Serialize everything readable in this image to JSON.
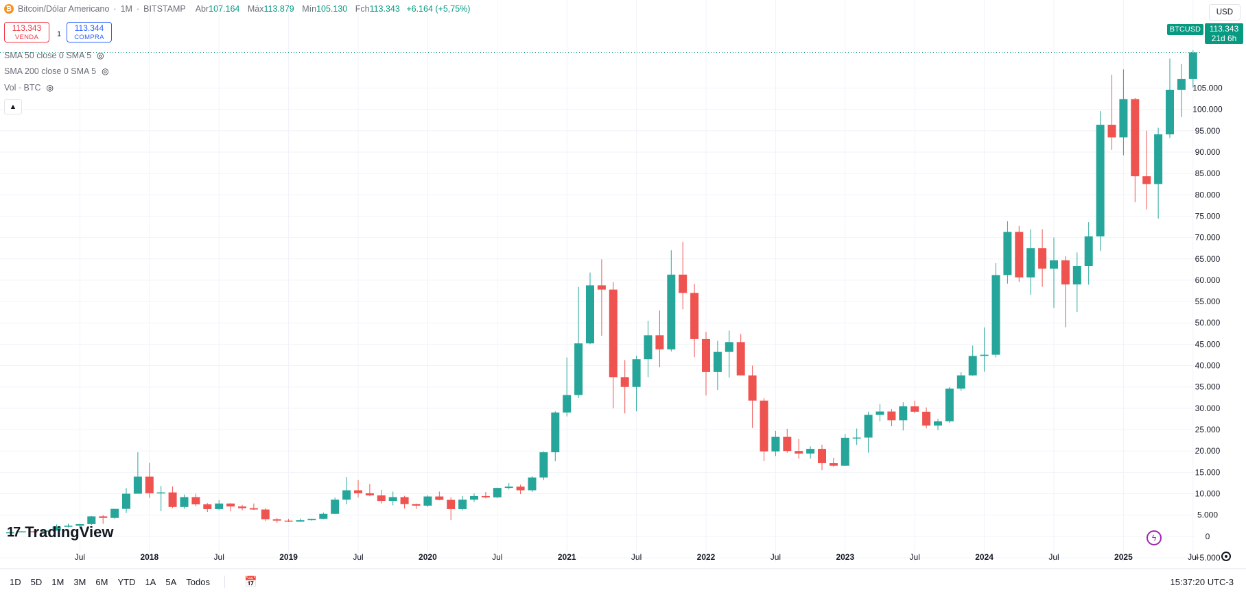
{
  "header": {
    "symbol_icon": "bitcoin-icon",
    "symbol_name": "Bitcoin/Dólar Americano",
    "interval": "1M",
    "exchange": "BITSTAMP",
    "open_label": "Abr",
    "open": "107.164",
    "high_label": "Máx",
    "high": "113.879",
    "low_label": "Mín",
    "low": "105.130",
    "close_label": "Fch",
    "close": "113.343",
    "change": "+6.164 (+5,75%)"
  },
  "trade": {
    "sell_price": "113.343",
    "sell_label": "VENDA",
    "spread": "1",
    "buy_price": "113.344",
    "buy_label": "COMPRA"
  },
  "indicators": [
    {
      "label": "SMA 50 close 0 SMA 5"
    },
    {
      "label": "SMA 200 close 0 SMA 5"
    },
    {
      "label": "Vol · BTC"
    }
  ],
  "collapse_icon": "chevron-up-icon",
  "currency_button": "USD",
  "last_price": {
    "symbol": "BTCUSD",
    "price": "113.343",
    "countdown": "21d 6h"
  },
  "logo_text": "TradingView",
  "timeframes": [
    "1D",
    "5D",
    "1M",
    "3M",
    "6M",
    "YTD",
    "1A",
    "5A",
    "Todos"
  ],
  "clock": "15:37:20 UTC-3",
  "colors": {
    "up": "#26a69a",
    "down": "#ef5350",
    "grid": "#f0f3fa",
    "axis_text": "#131722"
  },
  "chart_data": {
    "type": "candlestick",
    "title": "",
    "ylim": [
      -5000,
      120000
    ],
    "y_ticks": [
      -5000,
      0,
      5000,
      10000,
      15000,
      20000,
      25000,
      30000,
      35000,
      40000,
      45000,
      50000,
      55000,
      60000,
      65000,
      70000,
      75000,
      80000,
      85000,
      90000,
      95000,
      100000,
      105000
    ],
    "y_tick_labels": [
      "−5.000",
      "0",
      "5.000",
      "10.000",
      "15.000",
      "20.000",
      "25.000",
      "30.000",
      "35.000",
      "40.000",
      "45.000",
      "50.000",
      "55.000",
      "60.000",
      "65.000",
      "70.000",
      "75.000",
      "80.000",
      "85.000",
      "90.000",
      "95.000",
      "100.000",
      "105.000"
    ],
    "x_ticks": [
      {
        "date": "2017-07",
        "label": "Jul"
      },
      {
        "date": "2018-01",
        "label": "2018"
      },
      {
        "date": "2018-07",
        "label": "Jul"
      },
      {
        "date": "2019-01",
        "label": "2019"
      },
      {
        "date": "2019-07",
        "label": "Jul"
      },
      {
        "date": "2020-01",
        "label": "2020"
      },
      {
        "date": "2020-07",
        "label": "Jul"
      },
      {
        "date": "2021-01",
        "label": "2021"
      },
      {
        "date": "2021-07",
        "label": "Jul"
      },
      {
        "date": "2022-01",
        "label": "2022"
      },
      {
        "date": "2022-07",
        "label": "Jul"
      },
      {
        "date": "2023-01",
        "label": "2023"
      },
      {
        "date": "2023-07",
        "label": "Jul"
      },
      {
        "date": "2024-01",
        "label": "2024"
      },
      {
        "date": "2024-07",
        "label": "Jul"
      },
      {
        "date": "2025-01",
        "label": "2025"
      },
      {
        "date": "2025-07",
        "label": "Jul"
      }
    ],
    "candles": [
      {
        "d": "2017-01",
        "o": 960,
        "h": 1150,
        "l": 750,
        "c": 970
      },
      {
        "d": "2017-02",
        "o": 970,
        "h": 1200,
        "l": 910,
        "c": 1190
      },
      {
        "d": "2017-03",
        "o": 1190,
        "h": 1350,
        "l": 890,
        "c": 1080
      },
      {
        "d": "2017-04",
        "o": 1080,
        "h": 1450,
        "l": 1060,
        "c": 1350
      },
      {
        "d": "2017-05",
        "o": 1350,
        "h": 2800,
        "l": 1350,
        "c": 2300
      },
      {
        "d": "2017-06",
        "o": 2300,
        "h": 3000,
        "l": 2100,
        "c": 2500
      },
      {
        "d": "2017-07",
        "o": 2500,
        "h": 2950,
        "l": 1850,
        "c": 2870
      },
      {
        "d": "2017-08",
        "o": 2870,
        "h": 4800,
        "l": 2700,
        "c": 4700
      },
      {
        "d": "2017-09",
        "o": 4700,
        "h": 5000,
        "l": 2950,
        "c": 4340
      },
      {
        "d": "2017-10",
        "o": 4340,
        "h": 6450,
        "l": 4100,
        "c": 6450
      },
      {
        "d": "2017-11",
        "o": 6450,
        "h": 11300,
        "l": 5500,
        "c": 10000
      },
      {
        "d": "2017-12",
        "o": 10000,
        "h": 19700,
        "l": 10000,
        "c": 14000
      },
      {
        "d": "2018-01",
        "o": 14000,
        "h": 17200,
        "l": 9000,
        "c": 10100
      },
      {
        "d": "2018-02",
        "o": 10100,
        "h": 11800,
        "l": 5900,
        "c": 10300
      },
      {
        "d": "2018-03",
        "o": 10300,
        "h": 11700,
        "l": 6600,
        "c": 6900
      },
      {
        "d": "2018-04",
        "o": 6900,
        "h": 9800,
        "l": 6500,
        "c": 9200
      },
      {
        "d": "2018-05",
        "o": 9200,
        "h": 10000,
        "l": 7000,
        "c": 7500
      },
      {
        "d": "2018-06",
        "o": 7500,
        "h": 7800,
        "l": 5750,
        "c": 6400
      },
      {
        "d": "2018-07",
        "o": 6400,
        "h": 8500,
        "l": 6100,
        "c": 7700
      },
      {
        "d": "2018-08",
        "o": 7700,
        "h": 7800,
        "l": 5900,
        "c": 7000
      },
      {
        "d": "2018-09",
        "o": 7000,
        "h": 7400,
        "l": 6100,
        "c": 6600
      },
      {
        "d": "2018-10",
        "o": 6600,
        "h": 7700,
        "l": 6200,
        "c": 6300
      },
      {
        "d": "2018-11",
        "o": 6300,
        "h": 6600,
        "l": 3600,
        "c": 4000
      },
      {
        "d": "2018-12",
        "o": 4000,
        "h": 4300,
        "l": 3200,
        "c": 3700
      },
      {
        "d": "2019-01",
        "o": 3700,
        "h": 4100,
        "l": 3350,
        "c": 3450
      },
      {
        "d": "2019-02",
        "o": 3450,
        "h": 4200,
        "l": 3400,
        "c": 3800
      },
      {
        "d": "2019-03",
        "o": 3800,
        "h": 4150,
        "l": 3700,
        "c": 4100
      },
      {
        "d": "2019-04",
        "o": 4100,
        "h": 5600,
        "l": 4000,
        "c": 5300
      },
      {
        "d": "2019-05",
        "o": 5300,
        "h": 9100,
        "l": 5300,
        "c": 8600
      },
      {
        "d": "2019-06",
        "o": 8600,
        "h": 13900,
        "l": 7500,
        "c": 10800
      },
      {
        "d": "2019-07",
        "o": 10800,
        "h": 13200,
        "l": 9100,
        "c": 10100
      },
      {
        "d": "2019-08",
        "o": 10100,
        "h": 12300,
        "l": 9400,
        "c": 9600
      },
      {
        "d": "2019-09",
        "o": 9600,
        "h": 10900,
        "l": 7700,
        "c": 8300
      },
      {
        "d": "2019-10",
        "o": 8300,
        "h": 10500,
        "l": 7300,
        "c": 9200
      },
      {
        "d": "2019-11",
        "o": 9200,
        "h": 9500,
        "l": 6500,
        "c": 7550
      },
      {
        "d": "2019-12",
        "o": 7550,
        "h": 7700,
        "l": 6430,
        "c": 7200
      },
      {
        "d": "2020-01",
        "o": 7200,
        "h": 9600,
        "l": 6900,
        "c": 9350
      },
      {
        "d": "2020-02",
        "o": 9350,
        "h": 10500,
        "l": 8450,
        "c": 8550
      },
      {
        "d": "2020-03",
        "o": 8550,
        "h": 9200,
        "l": 3850,
        "c": 6400
      },
      {
        "d": "2020-04",
        "o": 6400,
        "h": 9450,
        "l": 6150,
        "c": 8600
      },
      {
        "d": "2020-05",
        "o": 8600,
        "h": 10050,
        "l": 8100,
        "c": 9450
      },
      {
        "d": "2020-06",
        "o": 9450,
        "h": 10400,
        "l": 8900,
        "c": 9140
      },
      {
        "d": "2020-07",
        "o": 9140,
        "h": 11450,
        "l": 8950,
        "c": 11350
      },
      {
        "d": "2020-08",
        "o": 11350,
        "h": 12480,
        "l": 11000,
        "c": 11650
      },
      {
        "d": "2020-09",
        "o": 11650,
        "h": 12100,
        "l": 9900,
        "c": 10800
      },
      {
        "d": "2020-10",
        "o": 10800,
        "h": 14100,
        "l": 10400,
        "c": 13800
      },
      {
        "d": "2020-11",
        "o": 13800,
        "h": 19900,
        "l": 13200,
        "c": 19700
      },
      {
        "d": "2020-12",
        "o": 19700,
        "h": 29300,
        "l": 17600,
        "c": 29000
      },
      {
        "d": "2021-01",
        "o": 29000,
        "h": 41900,
        "l": 28100,
        "c": 33100
      },
      {
        "d": "2021-02",
        "o": 33100,
        "h": 58400,
        "l": 32400,
        "c": 45200
      },
      {
        "d": "2021-03",
        "o": 45200,
        "h": 61800,
        "l": 45000,
        "c": 58800
      },
      {
        "d": "2021-04",
        "o": 58800,
        "h": 64900,
        "l": 47000,
        "c": 57800
      },
      {
        "d": "2021-05",
        "o": 57800,
        "h": 59500,
        "l": 30000,
        "c": 37300
      },
      {
        "d": "2021-06",
        "o": 37300,
        "h": 41300,
        "l": 28800,
        "c": 35000
      },
      {
        "d": "2021-07",
        "o": 35000,
        "h": 42300,
        "l": 29300,
        "c": 41500
      },
      {
        "d": "2021-08",
        "o": 41500,
        "h": 50500,
        "l": 37300,
        "c": 47100
      },
      {
        "d": "2021-09",
        "o": 47100,
        "h": 52900,
        "l": 39600,
        "c": 43800
      },
      {
        "d": "2021-10",
        "o": 43800,
        "h": 67000,
        "l": 43300,
        "c": 61300
      },
      {
        "d": "2021-11",
        "o": 61300,
        "h": 69000,
        "l": 53200,
        "c": 57000
      },
      {
        "d": "2021-12",
        "o": 57000,
        "h": 59100,
        "l": 42000,
        "c": 46200
      },
      {
        "d": "2022-01",
        "o": 46200,
        "h": 47900,
        "l": 33000,
        "c": 38500
      },
      {
        "d": "2022-02",
        "o": 38500,
        "h": 45800,
        "l": 34300,
        "c": 43200
      },
      {
        "d": "2022-03",
        "o": 43200,
        "h": 48200,
        "l": 37200,
        "c": 45500
      },
      {
        "d": "2022-04",
        "o": 45500,
        "h": 47400,
        "l": 37700,
        "c": 37700
      },
      {
        "d": "2022-05",
        "o": 37700,
        "h": 40000,
        "l": 25400,
        "c": 31800
      },
      {
        "d": "2022-06",
        "o": 31800,
        "h": 32400,
        "l": 17600,
        "c": 19900
      },
      {
        "d": "2022-07",
        "o": 19900,
        "h": 24700,
        "l": 18800,
        "c": 23300
      },
      {
        "d": "2022-08",
        "o": 23300,
        "h": 25200,
        "l": 19600,
        "c": 20000
      },
      {
        "d": "2022-09",
        "o": 20000,
        "h": 22800,
        "l": 18200,
        "c": 19400
      },
      {
        "d": "2022-10",
        "o": 19400,
        "h": 21100,
        "l": 18200,
        "c": 20500
      },
      {
        "d": "2022-11",
        "o": 20500,
        "h": 21450,
        "l": 15500,
        "c": 17150
      },
      {
        "d": "2022-12",
        "o": 17150,
        "h": 18400,
        "l": 16300,
        "c": 16550
      },
      {
        "d": "2023-01",
        "o": 16550,
        "h": 23950,
        "l": 16500,
        "c": 23100
      },
      {
        "d": "2023-02",
        "o": 23100,
        "h": 25250,
        "l": 21400,
        "c": 23150
      },
      {
        "d": "2023-03",
        "o": 23150,
        "h": 29200,
        "l": 19600,
        "c": 28450
      },
      {
        "d": "2023-04",
        "o": 28450,
        "h": 31000,
        "l": 26900,
        "c": 29250
      },
      {
        "d": "2023-05",
        "o": 29250,
        "h": 29800,
        "l": 25800,
        "c": 27200
      },
      {
        "d": "2023-06",
        "o": 27200,
        "h": 31400,
        "l": 24800,
        "c": 30450
      },
      {
        "d": "2023-07",
        "o": 30450,
        "h": 31800,
        "l": 28850,
        "c": 29200
      },
      {
        "d": "2023-08",
        "o": 29200,
        "h": 30200,
        "l": 25300,
        "c": 25950
      },
      {
        "d": "2023-09",
        "o": 25950,
        "h": 27500,
        "l": 24900,
        "c": 26950
      },
      {
        "d": "2023-10",
        "o": 26950,
        "h": 35000,
        "l": 26550,
        "c": 34600
      },
      {
        "d": "2023-11",
        "o": 34600,
        "h": 38450,
        "l": 34100,
        "c": 37700
      },
      {
        "d": "2023-12",
        "o": 37700,
        "h": 44700,
        "l": 37600,
        "c": 42250
      },
      {
        "d": "2024-01",
        "o": 42250,
        "h": 48950,
        "l": 38550,
        "c": 42550
      },
      {
        "d": "2024-02",
        "o": 42550,
        "h": 64000,
        "l": 41900,
        "c": 61200
      },
      {
        "d": "2024-03",
        "o": 61200,
        "h": 73800,
        "l": 59200,
        "c": 71300
      },
      {
        "d": "2024-04",
        "o": 71300,
        "h": 72700,
        "l": 59600,
        "c": 60650
      },
      {
        "d": "2024-05",
        "o": 60650,
        "h": 71950,
        "l": 56550,
        "c": 67500
      },
      {
        "d": "2024-06",
        "o": 67500,
        "h": 71950,
        "l": 58450,
        "c": 62700
      },
      {
        "d": "2024-07",
        "o": 62700,
        "h": 70000,
        "l": 53500,
        "c": 64650
      },
      {
        "d": "2024-08",
        "o": 64650,
        "h": 65600,
        "l": 49000,
        "c": 59000
      },
      {
        "d": "2024-09",
        "o": 59000,
        "h": 66500,
        "l": 52550,
        "c": 63350
      },
      {
        "d": "2024-10",
        "o": 63350,
        "h": 73600,
        "l": 58950,
        "c": 70250
      },
      {
        "d": "2024-11",
        "o": 70250,
        "h": 99600,
        "l": 66850,
        "c": 96400
      },
      {
        "d": "2024-12",
        "o": 96400,
        "h": 108100,
        "l": 90500,
        "c": 93450
      },
      {
        "d": "2025-01",
        "o": 93450,
        "h": 109350,
        "l": 89250,
        "c": 102400
      },
      {
        "d": "2025-02",
        "o": 102400,
        "h": 102700,
        "l": 78250,
        "c": 84350
      },
      {
        "d": "2025-03",
        "o": 84350,
        "h": 95000,
        "l": 76550,
        "c": 82500
      },
      {
        "d": "2025-04",
        "o": 82500,
        "h": 95700,
        "l": 74400,
        "c": 94150
      },
      {
        "d": "2025-05",
        "o": 94150,
        "h": 111900,
        "l": 93300,
        "c": 104600
      },
      {
        "d": "2025-06",
        "o": 104600,
        "h": 110650,
        "l": 98200,
        "c": 107150
      },
      {
        "d": "2025-07",
        "o": 107150,
        "h": 113879,
        "l": 105130,
        "c": 113343
      }
    ]
  }
}
